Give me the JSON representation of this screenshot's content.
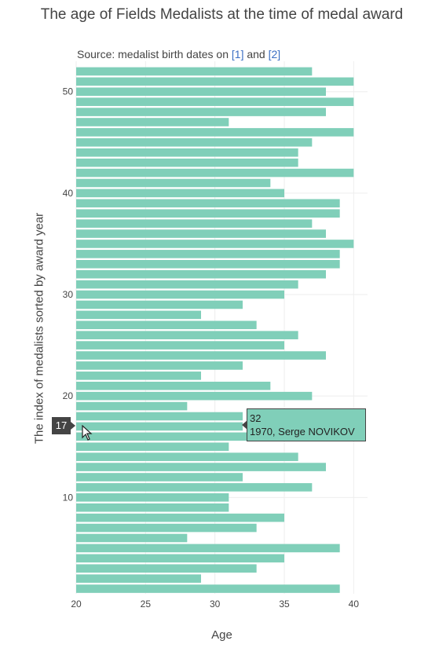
{
  "title": "The age of Fields Medalists at the time of medal award",
  "source": {
    "prefix": "Source: medalist birth dates on",
    "ref1": "[1]",
    "and": "and",
    "ref2": "[2]"
  },
  "hover": {
    "index_badge": "17",
    "tooltip_value": "32",
    "tooltip_label": "1970, Serge NOVIKOV"
  },
  "colors": {
    "bar": "#80cfb9",
    "grid": "#eeeeee",
    "text": "#444444",
    "link": "#3b6fc4"
  },
  "chart_data": {
    "type": "bar",
    "orientation": "horizontal",
    "xlabel": "Age",
    "ylabel": "The index of medalists sorted by award year",
    "xlim": [
      20,
      41
    ],
    "ylim": [
      0.5,
      53
    ],
    "x_ticks": [
      20,
      25,
      30,
      35,
      40
    ],
    "y_ticks": [
      10,
      20,
      30,
      40,
      50
    ],
    "grid": true,
    "categories": [
      1,
      2,
      3,
      4,
      5,
      6,
      7,
      8,
      9,
      10,
      11,
      12,
      13,
      14,
      15,
      16,
      17,
      18,
      19,
      20,
      21,
      22,
      23,
      24,
      25,
      26,
      27,
      28,
      29,
      30,
      31,
      32,
      33,
      34,
      35,
      36,
      37,
      38,
      39,
      40,
      41,
      42,
      43,
      44,
      45,
      46,
      47,
      48,
      49,
      50,
      51,
      52
    ],
    "values": [
      39,
      29,
      33,
      35,
      39,
      28,
      33,
      35,
      31,
      31,
      37,
      32,
      38,
      36,
      31,
      33,
      32,
      32,
      28,
      37,
      34,
      29,
      32,
      38,
      35,
      36,
      33,
      29,
      32,
      35,
      36,
      38,
      39,
      39,
      40,
      38,
      37,
      39,
      39,
      35,
      34,
      40,
      36,
      36,
      37,
      40,
      31,
      38,
      40,
      38,
      40,
      37
    ]
  }
}
